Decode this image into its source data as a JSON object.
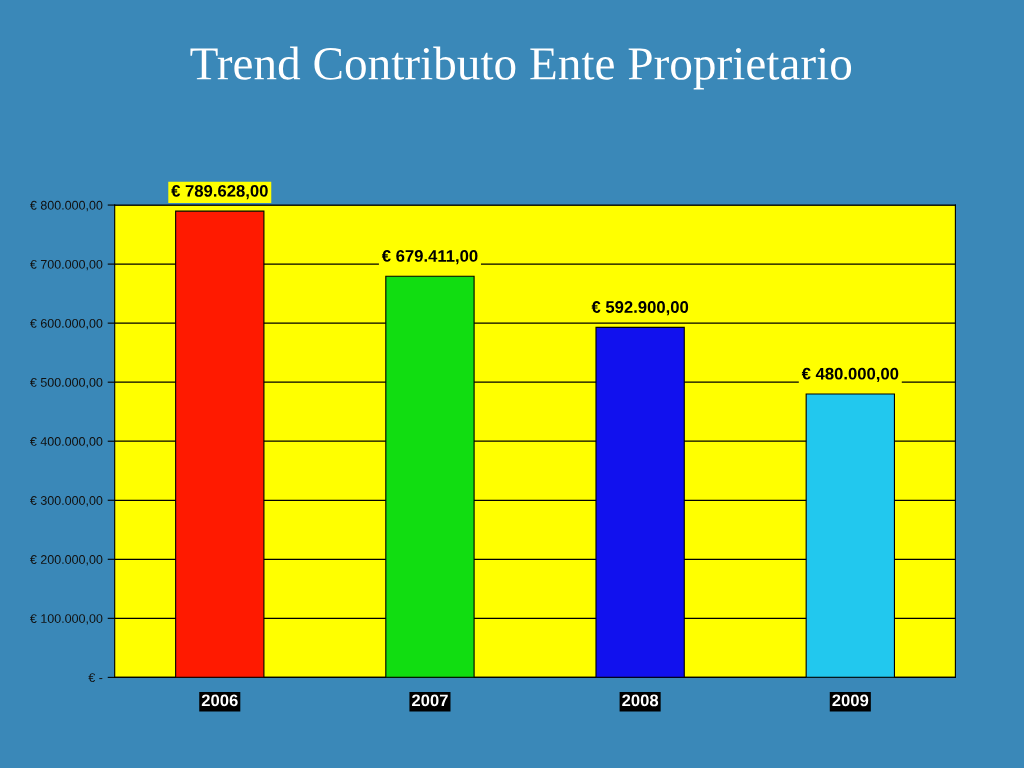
{
  "chart_data": {
    "type": "bar",
    "title": "Trend Contributo Ente Proprietario",
    "categories": [
      "2006",
      "2007",
      "2008",
      "2009"
    ],
    "values": [
      789628,
      679411,
      592900,
      480000
    ],
    "colors": [
      "#ff1a00",
      "#11dd11",
      "#1111ee",
      "#22c8ee"
    ],
    "value_labels": [
      "€ 789.628,00",
      "€ 679.411,00",
      "€ 592.900,00",
      "€ 480.000,00"
    ],
    "ylim": [
      0,
      800000
    ],
    "yticks": [
      {
        "value": 0,
        "label": "€ -"
      },
      {
        "value": 100000,
        "label": "€ 100.000,00"
      },
      {
        "value": 200000,
        "label": "€ 200.000,00"
      },
      {
        "value": 300000,
        "label": "€ 300.000,00"
      },
      {
        "value": 400000,
        "label": "€ 400.000,00"
      },
      {
        "value": 500000,
        "label": "€ 500.000,00"
      },
      {
        "value": 600000,
        "label": "€ 600.000,00"
      },
      {
        "value": 700000,
        "label": "€ 700.000,00"
      },
      {
        "value": 800000,
        "label": "€ 800.000,00"
      }
    ],
    "grid": "y",
    "legend": false
  }
}
